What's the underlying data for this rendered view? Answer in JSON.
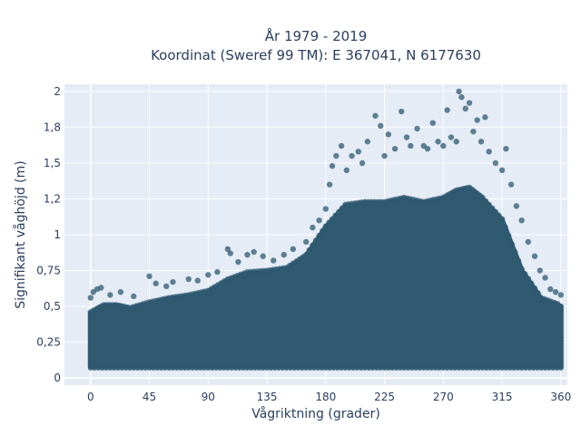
{
  "chart_data": {
    "type": "scatter",
    "title_lines": [
      "År 1979 - 2019",
      "Koordinat (Sweref 99 TM): E 367041, N 6177630"
    ],
    "xlabel": "Vågriktning (grader)",
    "ylabel": "Signifikant våghöjd (m)",
    "xlim": [
      -20,
      365
    ],
    "ylim": [
      -0.05,
      2.05
    ],
    "x_ticks": [
      0,
      45,
      90,
      135,
      180,
      225,
      270,
      315,
      360
    ],
    "x_tick_labels": [
      "0",
      "45",
      "90",
      "135",
      "180",
      "225",
      "270",
      "315",
      "360"
    ],
    "y_ticks": [
      0,
      0.25,
      0.5,
      0.75,
      1,
      1.25,
      1.5,
      1.75,
      2
    ],
    "y_tick_labels": [
      "0",
      "0,25",
      "0,5",
      "0,75",
      "1",
      "1,2",
      "1,5",
      "1,8",
      "2"
    ],
    "grid": true,
    "series": [
      {
        "marker_color": "#2f5a70",
        "upper_envelope": {
          "x": [
            0,
            10,
            20,
            30,
            45,
            60,
            75,
            90,
            105,
            120,
            135,
            150,
            165,
            180,
            195,
            210,
            225,
            240,
            255,
            270,
            280,
            290,
            300,
            315,
            330,
            345,
            360
          ],
          "y": [
            0.45,
            0.5,
            0.5,
            0.48,
            0.52,
            0.55,
            0.57,
            0.6,
            0.68,
            0.73,
            0.74,
            0.76,
            0.85,
            1.05,
            1.2,
            1.22,
            1.22,
            1.25,
            1.22,
            1.25,
            1.3,
            1.32,
            1.25,
            1.1,
            0.75,
            0.55,
            0.5
          ]
        },
        "lower_envelope": {
          "x": [
            0,
            360
          ],
          "y": [
            0.08,
            0.08
          ]
        },
        "outliers": [
          {
            "x": 0,
            "y": 0.56
          },
          {
            "x": 2,
            "y": 0.6
          },
          {
            "x": 5,
            "y": 0.62
          },
          {
            "x": 8,
            "y": 0.63
          },
          {
            "x": 15,
            "y": 0.58
          },
          {
            "x": 23,
            "y": 0.6
          },
          {
            "x": 33,
            "y": 0.57
          },
          {
            "x": 45,
            "y": 0.71
          },
          {
            "x": 50,
            "y": 0.66
          },
          {
            "x": 58,
            "y": 0.64
          },
          {
            "x": 63,
            "y": 0.67
          },
          {
            "x": 75,
            "y": 0.69
          },
          {
            "x": 82,
            "y": 0.68
          },
          {
            "x": 90,
            "y": 0.72
          },
          {
            "x": 97,
            "y": 0.74
          },
          {
            "x": 105,
            "y": 0.9
          },
          {
            "x": 107,
            "y": 0.87
          },
          {
            "x": 113,
            "y": 0.81
          },
          {
            "x": 120,
            "y": 0.86
          },
          {
            "x": 125,
            "y": 0.88
          },
          {
            "x": 132,
            "y": 0.85
          },
          {
            "x": 140,
            "y": 0.82
          },
          {
            "x": 148,
            "y": 0.86
          },
          {
            "x": 155,
            "y": 0.9
          },
          {
            "x": 165,
            "y": 0.95
          },
          {
            "x": 170,
            "y": 1.05
          },
          {
            "x": 175,
            "y": 1.1
          },
          {
            "x": 180,
            "y": 1.18
          },
          {
            "x": 183,
            "y": 1.35
          },
          {
            "x": 185,
            "y": 1.48
          },
          {
            "x": 188,
            "y": 1.55
          },
          {
            "x": 192,
            "y": 1.62
          },
          {
            "x": 196,
            "y": 1.45
          },
          {
            "x": 200,
            "y": 1.55
          },
          {
            "x": 205,
            "y": 1.58
          },
          {
            "x": 208,
            "y": 1.5
          },
          {
            "x": 212,
            "y": 1.65
          },
          {
            "x": 218,
            "y": 1.83
          },
          {
            "x": 222,
            "y": 1.76
          },
          {
            "x": 225,
            "y": 1.55
          },
          {
            "x": 228,
            "y": 1.7
          },
          {
            "x": 233,
            "y": 1.6
          },
          {
            "x": 238,
            "y": 1.86
          },
          {
            "x": 242,
            "y": 1.68
          },
          {
            "x": 245,
            "y": 1.62
          },
          {
            "x": 250,
            "y": 1.74
          },
          {
            "x": 255,
            "y": 1.62
          },
          {
            "x": 258,
            "y": 1.6
          },
          {
            "x": 262,
            "y": 1.78
          },
          {
            "x": 266,
            "y": 1.65
          },
          {
            "x": 270,
            "y": 1.62
          },
          {
            "x": 273,
            "y": 1.87
          },
          {
            "x": 276,
            "y": 1.68
          },
          {
            "x": 280,
            "y": 1.65
          },
          {
            "x": 282,
            "y": 2.0
          },
          {
            "x": 284,
            "y": 1.96
          },
          {
            "x": 287,
            "y": 1.88
          },
          {
            "x": 290,
            "y": 1.92
          },
          {
            "x": 293,
            "y": 1.72
          },
          {
            "x": 296,
            "y": 1.8
          },
          {
            "x": 299,
            "y": 1.65
          },
          {
            "x": 302,
            "y": 1.82
          },
          {
            "x": 305,
            "y": 1.58
          },
          {
            "x": 310,
            "y": 1.5
          },
          {
            "x": 315,
            "y": 1.45
          },
          {
            "x": 318,
            "y": 1.6
          },
          {
            "x": 322,
            "y": 1.35
          },
          {
            "x": 326,
            "y": 1.2
          },
          {
            "x": 330,
            "y": 1.1
          },
          {
            "x": 335,
            "y": 0.95
          },
          {
            "x": 340,
            "y": 0.85
          },
          {
            "x": 344,
            "y": 0.75
          },
          {
            "x": 348,
            "y": 0.7
          },
          {
            "x": 352,
            "y": 0.62
          },
          {
            "x": 356,
            "y": 0.6
          },
          {
            "x": 360,
            "y": 0.58
          }
        ]
      }
    ]
  }
}
